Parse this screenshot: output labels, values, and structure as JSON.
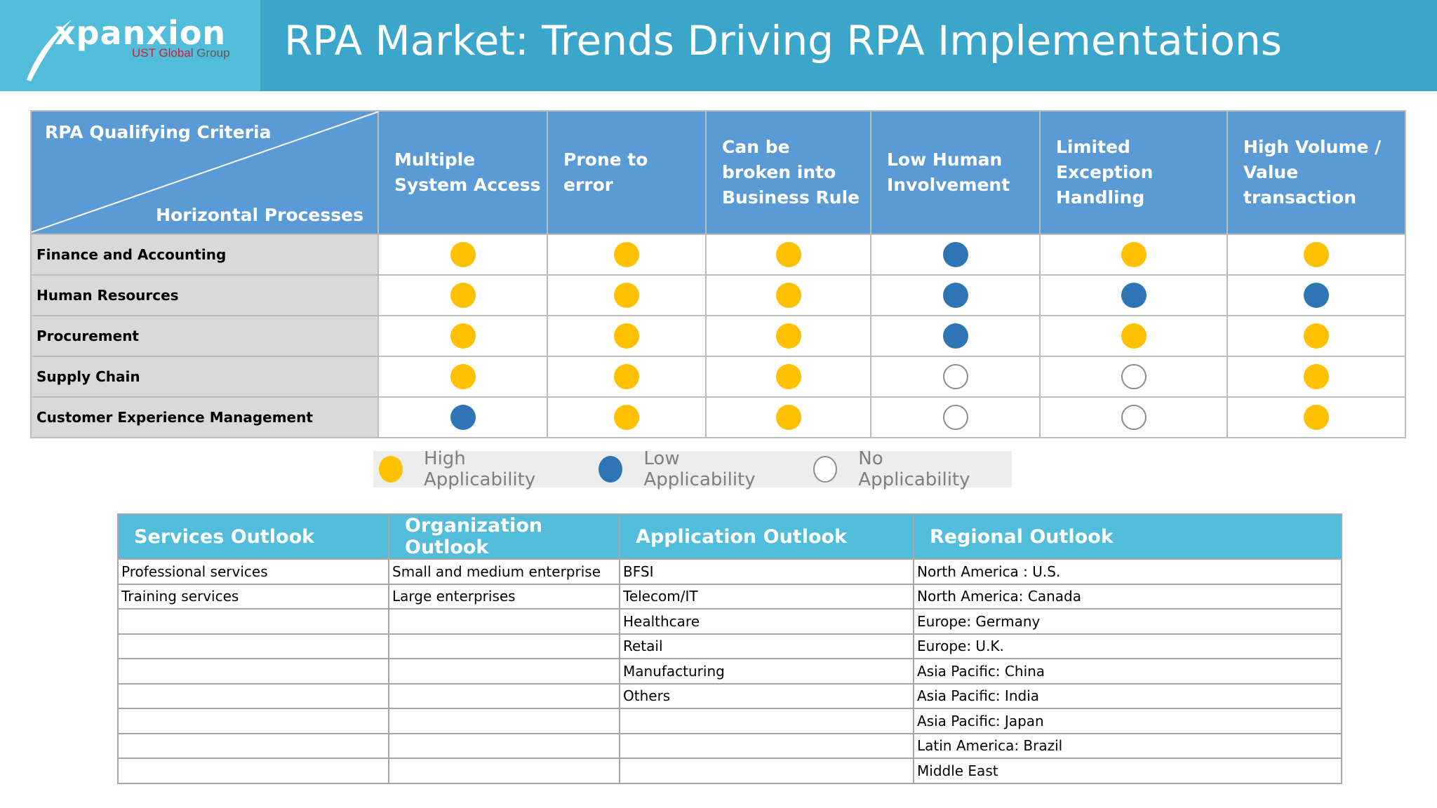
{
  "header": {
    "title": "RPA Market: Trends Driving RPA Implementations",
    "logo": {
      "name": "xpanxion",
      "sub_brand": "UST Global",
      "sub_group": "Group"
    }
  },
  "criteria_table": {
    "corner_top": "RPA Qualifying Criteria",
    "corner_bottom": "Horizontal Processes",
    "columns": [
      "Multiple System Access",
      "Prone to error",
      "Can be broken into Business Rule",
      "Low Human Involvement",
      "Limited Exception Handling",
      "High Volume / Value transaction"
    ],
    "rows": [
      {
        "label": "Finance and Accounting",
        "values": [
          "high",
          "high",
          "high",
          "low",
          "high",
          "high"
        ]
      },
      {
        "label": "Human Resources",
        "values": [
          "high",
          "high",
          "high",
          "low",
          "low",
          "low"
        ]
      },
      {
        "label": "Procurement",
        "values": [
          "high",
          "high",
          "high",
          "low",
          "high",
          "high"
        ]
      },
      {
        "label": "Supply Chain",
        "values": [
          "high",
          "high",
          "high",
          "none",
          "none",
          "high"
        ]
      },
      {
        "label": "Customer Experience Management",
        "values": [
          "low",
          "high",
          "high",
          "none",
          "none",
          "high"
        ]
      }
    ]
  },
  "legend": [
    {
      "key": "high",
      "label": "High Applicability",
      "color": "#ffc000"
    },
    {
      "key": "low",
      "label": "Low Applicability",
      "color": "#2e75b6"
    },
    {
      "key": "none",
      "label": "No Applicability",
      "color": "#ffffff"
    }
  ],
  "outlook_table": {
    "headers": [
      "Services Outlook",
      "Organization Outlook",
      "Application Outlook",
      "Regional Outlook"
    ],
    "rows": [
      [
        "Professional services",
        "Small and medium enterprise",
        "BFSI",
        "North America : U.S."
      ],
      [
        "Training services",
        "Large enterprises",
        "Telecom/IT",
        "North America: Canada"
      ],
      [
        "",
        "",
        "Healthcare",
        "Europe: Germany"
      ],
      [
        "",
        "",
        "Retail",
        "Europe: U.K."
      ],
      [
        "",
        "",
        "Manufacturing",
        "Asia Pacific: China"
      ],
      [
        "",
        "",
        "Others",
        "Asia Pacific: India"
      ],
      [
        "",
        "",
        "",
        "Asia Pacific: Japan"
      ],
      [
        "",
        "",
        "",
        "Latin America: Brazil"
      ],
      [
        "",
        "",
        "",
        "Middle East"
      ]
    ]
  },
  "colors": {
    "header_bg": "#3ba6c9",
    "logo_bg": "#52bcdb",
    "criteria_header_bg": "#5b9bd5",
    "row_label_bg": "#d9d9d9",
    "outlook_header_bg": "#52bcdb",
    "high": "#ffc000",
    "low": "#2e75b6"
  }
}
